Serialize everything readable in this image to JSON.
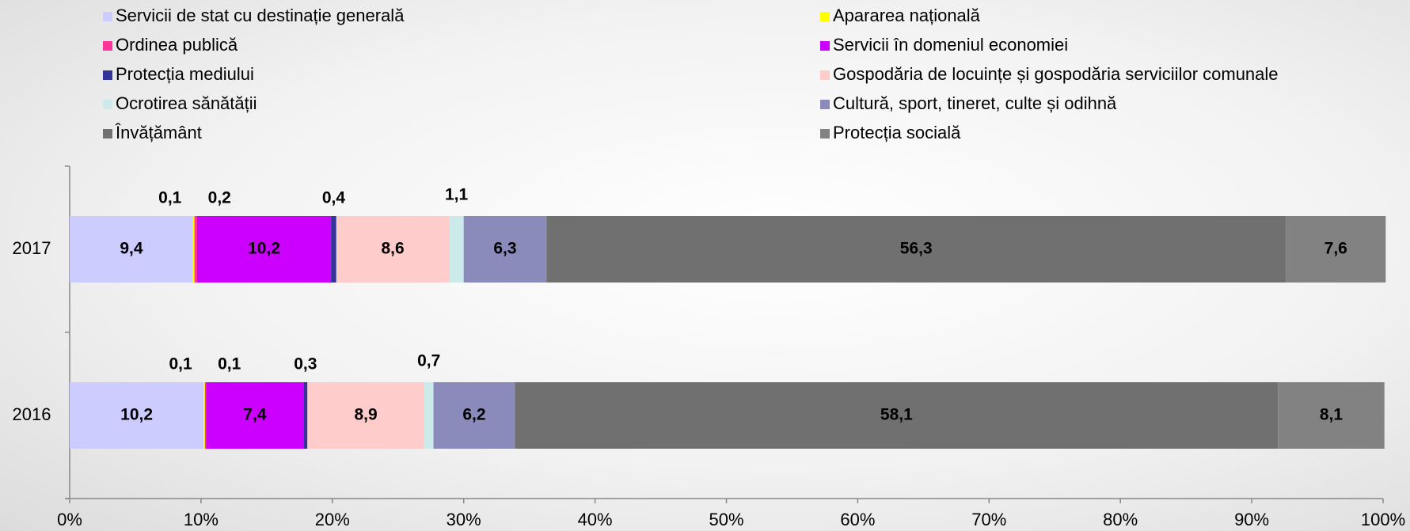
{
  "chart_data": {
    "type": "stacked_bar_horizontal",
    "categories": [
      "2017",
      "2016"
    ],
    "series": [
      {
        "name": "Servicii de stat cu destinație generală",
        "color": "#ccccff",
        "values": [
          9.4,
          10.2
        ],
        "value_labels": [
          "9,4",
          "10,2"
        ]
      },
      {
        "name": "Apararea națională",
        "color": "#ffff00",
        "values": [
          0.1,
          0.1
        ],
        "value_labels": [
          "0,1",
          "0,1"
        ]
      },
      {
        "name": "Ordinea publică",
        "color": "#ff3399",
        "values": [
          0.2,
          0.1
        ],
        "value_labels": [
          "0,2",
          "0,1"
        ]
      },
      {
        "name": "Servicii în domeniul economiei",
        "color": "#cc00ff",
        "values": [
          10.2,
          7.4
        ],
        "value_labels": [
          "10,2",
          "7,4"
        ]
      },
      {
        "name": "Protecția mediului",
        "color": "#333399",
        "values": [
          0.4,
          0.3
        ],
        "value_labels": [
          "0,4",
          "0,3"
        ]
      },
      {
        "name": "Gospodăria de locuințe și gospodăria serviciilor comunale",
        "color": "#ffcccc",
        "values": [
          8.6,
          8.9
        ],
        "value_labels": [
          "8,6",
          "8,9"
        ]
      },
      {
        "name": "Ocrotirea sănătății",
        "color": "#cceaea",
        "values": [
          1.1,
          0.7
        ],
        "value_labels": [
          "1,1",
          "0,7"
        ]
      },
      {
        "name": "Cultură, sport, tineret, culte și odihnă",
        "color": "#8a8abb",
        "values": [
          6.3,
          6.2
        ],
        "value_labels": [
          "6,3",
          "6,2"
        ]
      },
      {
        "name": "Învățământ",
        "color": "#707070",
        "values": [
          56.3,
          58.1
        ],
        "value_labels": [
          "56,3",
          "58,1"
        ]
      },
      {
        "name": "Protecția socială",
        "color": "#828282",
        "values": [
          7.6,
          8.1
        ],
        "value_labels": [
          "7,6",
          "8,1"
        ]
      }
    ],
    "xlim": [
      0,
      100
    ],
    "xticks": [
      {
        "value": 0,
        "label": "0%"
      },
      {
        "value": 10,
        "label": "10%"
      },
      {
        "value": 20,
        "label": "20%"
      },
      {
        "value": 30,
        "label": "30%"
      },
      {
        "value": 40,
        "label": "40%"
      },
      {
        "value": 50,
        "label": "50%"
      },
      {
        "value": 60,
        "label": "60%"
      },
      {
        "value": 70,
        "label": "70%"
      },
      {
        "value": 80,
        "label": "80%"
      },
      {
        "value": 90,
        "label": "90%"
      },
      {
        "value": 100,
        "label": "100%"
      }
    ],
    "legend": "top"
  }
}
